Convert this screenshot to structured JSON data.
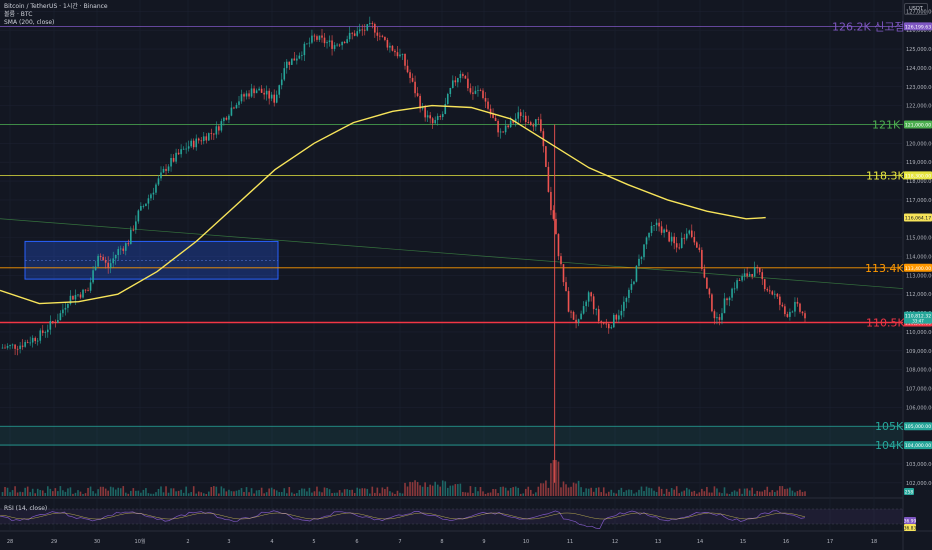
{
  "header": {
    "symbol_line": "Bitcoin / TetherUS · 1시간 · Binance",
    "volume_line": "볼륨 · BTC",
    "sma_line": "SMA (200, close)",
    "currency": "USDT",
    "rsi_label": "RSI (14, close)"
  },
  "chart_data": {
    "type": "candlestick",
    "title": "Bitcoin / TetherUS · 1시간 · Binance",
    "price_axis": {
      "ticks": [
        "127,000.00",
        "126,000.00",
        "125,000.00",
        "124,000.00",
        "123,000.00",
        "122,000.00",
        "121,000.00",
        "120,000.00",
        "119,000.00",
        "118,000.00",
        "117,000.00",
        "116,000.00",
        "115,000.00",
        "114,000.00",
        "113,000.00",
        "112,000.00",
        "111,000.00",
        "110,000.00",
        "109,000.00",
        "108,000.00",
        "107,000.00",
        "106,000.00",
        "105,000.00",
        "104,000.00",
        "103,000.00",
        "102,000.00"
      ],
      "range": [
        101300,
        127600
      ]
    },
    "x_ticks": [
      "28",
      "29",
      "30",
      "10월",
      "2",
      "3",
      "4",
      "5",
      "6",
      "7",
      "8",
      "9",
      "10",
      "11",
      "12",
      "13",
      "14",
      "15",
      "16",
      "17",
      "18"
    ],
    "levels": [
      {
        "label": "126.2K 신고점",
        "price": 126199.63,
        "price_tag": "126,199.63",
        "color": "#7e57c2"
      },
      {
        "label": "121K",
        "price": 121000,
        "price_tag": "121,000.00",
        "color": "#4caf50"
      },
      {
        "label": "118.3K",
        "price": 118300,
        "price_tag": "118,300.00",
        "color": "#e6e640"
      },
      {
        "label": "113.4K",
        "price": 113400,
        "price_tag": "113,400.00",
        "color": "#ff9800"
      },
      {
        "label": "110.5K",
        "price": 110500,
        "price_tag": "110,500.00",
        "color": "#f23645"
      },
      {
        "label": "105K",
        "price": 105000,
        "price_tag": "105,000.00",
        "color": "#26a69a"
      },
      {
        "label": "104K",
        "price": 104000,
        "price_tag": "104,000.00",
        "color": "#26a69a"
      }
    ],
    "sma_tag": "116,064.17",
    "last_price": "110,812.32",
    "last_time": "33:47",
    "volume_tag": "258",
    "rsi_values": [
      "36.99",
      "36.83"
    ],
    "path": [
      [
        0,
        109150
      ],
      [
        2,
        109300
      ],
      [
        4,
        109800
      ],
      [
        6,
        110800
      ],
      [
        7,
        111800
      ],
      [
        8,
        112000
      ],
      [
        9,
        112200
      ],
      [
        10,
        114200
      ],
      [
        11,
        113400
      ],
      [
        12,
        114300
      ],
      [
        13,
        114700
      ],
      [
        14,
        116200
      ],
      [
        15,
        117000
      ],
      [
        17,
        118800
      ],
      [
        19,
        119800
      ],
      [
        22,
        120700
      ],
      [
        24,
        122200
      ],
      [
        26,
        122900
      ],
      [
        28,
        122300
      ],
      [
        29,
        124200
      ],
      [
        30,
        124500
      ],
      [
        32,
        125600
      ],
      [
        34,
        125200
      ],
      [
        36,
        125800
      ],
      [
        38,
        126200
      ],
      [
        39,
        125500
      ],
      [
        41,
        124500
      ],
      [
        43,
        121800
      ],
      [
        44,
        121000
      ],
      [
        45,
        121400
      ],
      [
        46,
        123000
      ],
      [
        47,
        123900
      ],
      [
        48,
        122600
      ],
      [
        49,
        122800
      ],
      [
        50,
        121500
      ],
      [
        51,
        120500
      ],
      [
        52,
        121000
      ],
      [
        53,
        121600
      ],
      [
        54,
        121200
      ],
      [
        55,
        121000
      ],
      [
        56,
        117000
      ],
      [
        57,
        113800
      ],
      [
        58,
        111000
      ],
      [
        59,
        110400
      ],
      [
        60,
        112100
      ],
      [
        61,
        110600
      ],
      [
        62,
        110300
      ],
      [
        63,
        111000
      ],
      [
        64,
        111900
      ],
      [
        65,
        113600
      ],
      [
        66,
        115200
      ],
      [
        67,
        115700
      ],
      [
        68,
        115100
      ],
      [
        69,
        114400
      ],
      [
        70,
        115500
      ],
      [
        71,
        114700
      ],
      [
        72,
        112200
      ],
      [
        73,
        110500
      ],
      [
        74,
        111800
      ],
      [
        75,
        112600
      ],
      [
        76,
        113000
      ],
      [
        77,
        113300
      ],
      [
        78,
        112400
      ],
      [
        79,
        111900
      ],
      [
        80,
        110900
      ],
      [
        81,
        111400
      ],
      [
        82,
        110800
      ]
    ],
    "sma": [
      [
        0,
        112200
      ],
      [
        4,
        111500
      ],
      [
        8,
        111600
      ],
      [
        12,
        112000
      ],
      [
        16,
        113200
      ],
      [
        20,
        114800
      ],
      [
        24,
        116700
      ],
      [
        28,
        118600
      ],
      [
        32,
        120000
      ],
      [
        36,
        121100
      ],
      [
        40,
        121700
      ],
      [
        44,
        122000
      ],
      [
        48,
        121900
      ],
      [
        52,
        121300
      ],
      [
        56,
        120000
      ],
      [
        60,
        118700
      ],
      [
        64,
        117800
      ],
      [
        68,
        117000
      ],
      [
        72,
        116400
      ],
      [
        76,
        116000
      ],
      [
        78,
        116064
      ]
    ]
  }
}
